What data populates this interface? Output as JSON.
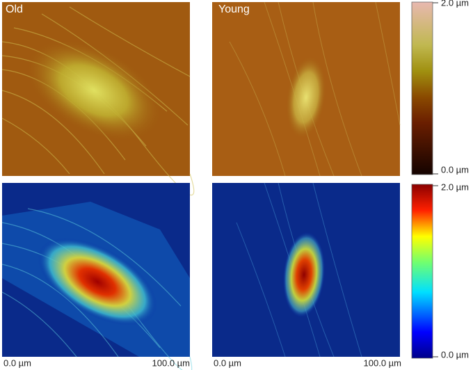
{
  "panels": [
    {
      "label": "Old"
    },
    {
      "label": "Young"
    }
  ],
  "colorbars": [
    {
      "max_label": "2.0 µm",
      "min_label": "0.0 µm"
    },
    {
      "max_label": "2.0 µm",
      "min_label": "0.0 µm"
    }
  ],
  "scale": [
    {
      "start": "0.0 µm",
      "end": "100.0 µm"
    },
    {
      "start": "0.0 µm",
      "end": "100.0 µm"
    }
  ]
}
